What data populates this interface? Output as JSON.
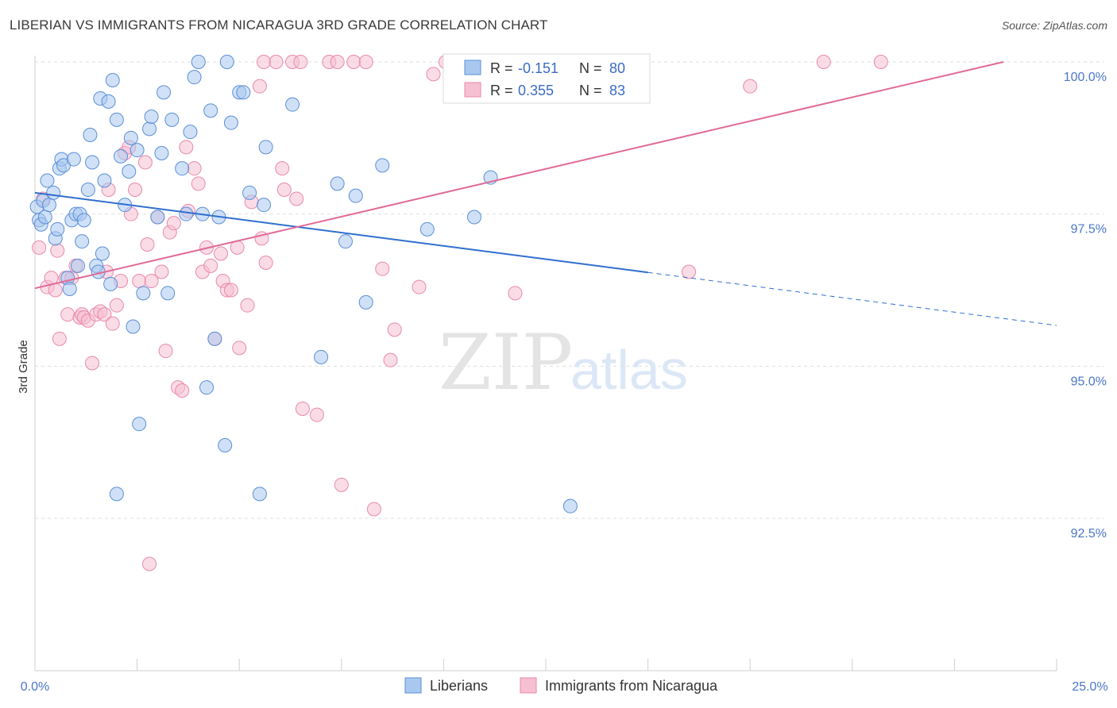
{
  "title": "LIBERIAN VS IMMIGRANTS FROM NICARAGUA 3RD GRADE CORRELATION CHART",
  "source": "Source: ZipAtlas.com",
  "watermark": {
    "zip": "ZIP",
    "atlas": "atlas"
  },
  "colors": {
    "liberians_fill": "#a9c8f0",
    "liberians_stroke": "#5b8fd6",
    "liberians_line": "#2f6fce",
    "nicaragua_fill": "#f6bfd2",
    "nicaragua_stroke": "#e88aab",
    "nicaragua_line": "#e06a97",
    "grid": "#dedede",
    "tick_text": "#4a77c8"
  },
  "legend": {
    "r_label": "R =",
    "n_label": "N =",
    "series1_r": "-0.151",
    "series1_n": "80",
    "series2_r": "0.355",
    "series2_n": "83"
  },
  "chart_data": {
    "type": "scatter",
    "title": "LIBERIAN VS IMMIGRANTS FROM NICARAGUA 3RD GRADE CORRELATION CHART",
    "xlabel": "",
    "ylabel": "3rd Grade",
    "xlim": [
      0,
      25
    ],
    "ylim": [
      90.0,
      100.4
    ],
    "x_tick_labels": [
      "0.0%",
      "25.0%"
    ],
    "y_ticks": [
      92.5,
      95.0,
      97.5,
      100.0
    ],
    "y_tick_labels": [
      "92.5%",
      "95.0%",
      "97.5%",
      "100.0%"
    ],
    "grid": true,
    "legend_position": "top-center",
    "series": [
      {
        "name": "Liberians",
        "color": "#a9c8f0",
        "r": -0.151,
        "n": 80,
        "trend": {
          "x0": 0,
          "y0": 97.85,
          "x1": 15.0,
          "y1": 96.54,
          "dashed_to_x": 25,
          "dashed_to_y": 95.67
        },
        "points": [
          [
            0.05,
            97.62
          ],
          [
            0.1,
            97.4
          ],
          [
            0.15,
            97.33
          ],
          [
            0.2,
            97.72
          ],
          [
            0.25,
            97.45
          ],
          [
            0.3,
            98.05
          ],
          [
            0.35,
            97.65
          ],
          [
            0.45,
            97.85
          ],
          [
            0.5,
            97.1
          ],
          [
            0.55,
            97.25
          ],
          [
            0.6,
            98.25
          ],
          [
            0.65,
            98.4
          ],
          [
            0.7,
            98.3
          ],
          [
            0.8,
            96.45
          ],
          [
            0.85,
            96.27
          ],
          [
            0.9,
            97.4
          ],
          [
            0.95,
            98.4
          ],
          [
            1.0,
            97.5
          ],
          [
            1.05,
            96.65
          ],
          [
            1.1,
            97.5
          ],
          [
            1.15,
            97.05
          ],
          [
            1.2,
            97.4
          ],
          [
            1.3,
            97.9
          ],
          [
            1.35,
            98.8
          ],
          [
            1.4,
            98.35
          ],
          [
            1.5,
            96.65
          ],
          [
            1.55,
            96.55
          ],
          [
            1.6,
            99.4
          ],
          [
            1.65,
            96.85
          ],
          [
            1.7,
            98.05
          ],
          [
            1.8,
            99.35
          ],
          [
            1.85,
            96.35
          ],
          [
            1.9,
            99.7
          ],
          [
            2.0,
            99.05
          ],
          [
            2.1,
            98.45
          ],
          [
            2.2,
            97.65
          ],
          [
            2.3,
            98.2
          ],
          [
            2.35,
            98.75
          ],
          [
            2.4,
            95.65
          ],
          [
            2.5,
            98.55
          ],
          [
            2.55,
            94.05
          ],
          [
            2.65,
            96.2
          ],
          [
            2.8,
            98.9
          ],
          [
            2.85,
            99.1
          ],
          [
            3.0,
            97.45
          ],
          [
            3.1,
            98.5
          ],
          [
            3.15,
            99.5
          ],
          [
            3.25,
            96.2
          ],
          [
            3.35,
            99.05
          ],
          [
            3.6,
            98.25
          ],
          [
            3.7,
            97.5
          ],
          [
            3.8,
            98.85
          ],
          [
            3.9,
            99.75
          ],
          [
            4.0,
            100.0
          ],
          [
            4.1,
            97.5
          ],
          [
            4.2,
            94.65
          ],
          [
            4.3,
            99.2
          ],
          [
            4.4,
            95.45
          ],
          [
            4.5,
            97.45
          ],
          [
            4.65,
            93.7
          ],
          [
            4.7,
            100.0
          ],
          [
            4.8,
            99.0
          ],
          [
            5.0,
            99.5
          ],
          [
            5.1,
            99.5
          ],
          [
            5.25,
            97.85
          ],
          [
            5.5,
            92.9
          ],
          [
            5.6,
            97.65
          ],
          [
            5.65,
            98.6
          ],
          [
            6.3,
            99.3
          ],
          [
            7.0,
            95.15
          ],
          [
            7.4,
            98.0
          ],
          [
            7.6,
            97.05
          ],
          [
            7.85,
            97.8
          ],
          [
            8.1,
            96.05
          ],
          [
            8.5,
            98.3
          ],
          [
            9.6,
            97.25
          ],
          [
            10.75,
            97.45
          ],
          [
            11.15,
            98.1
          ],
          [
            13.1,
            92.7
          ],
          [
            2.0,
            92.9
          ]
        ]
      },
      {
        "name": "Immigrants from Nicaragua",
        "color": "#f6bfd2",
        "r": 0.355,
        "n": 83,
        "trend": {
          "x0": 0,
          "y0": 96.28,
          "x1": 23.7,
          "y1": 100.0
        },
        "points": [
          [
            0.1,
            96.95
          ],
          [
            0.2,
            97.75
          ],
          [
            0.3,
            96.3
          ],
          [
            0.4,
            96.45
          ],
          [
            0.5,
            96.25
          ],
          [
            0.55,
            96.9
          ],
          [
            0.6,
            95.45
          ],
          [
            0.75,
            96.45
          ],
          [
            0.8,
            95.85
          ],
          [
            0.9,
            96.45
          ],
          [
            1.0,
            96.65
          ],
          [
            1.1,
            95.8
          ],
          [
            1.15,
            95.85
          ],
          [
            1.2,
            95.8
          ],
          [
            1.3,
            95.75
          ],
          [
            1.4,
            95.05
          ],
          [
            1.5,
            95.85
          ],
          [
            1.6,
            95.9
          ],
          [
            1.7,
            95.85
          ],
          [
            1.75,
            96.55
          ],
          [
            1.8,
            97.9
          ],
          [
            1.9,
            95.7
          ],
          [
            2.0,
            96.0
          ],
          [
            2.1,
            96.4
          ],
          [
            2.2,
            98.5
          ],
          [
            2.3,
            98.6
          ],
          [
            2.35,
            97.5
          ],
          [
            2.45,
            97.9
          ],
          [
            2.55,
            96.4
          ],
          [
            2.7,
            98.35
          ],
          [
            2.75,
            97.0
          ],
          [
            2.85,
            96.4
          ],
          [
            3.0,
            97.45
          ],
          [
            3.1,
            96.55
          ],
          [
            3.2,
            95.25
          ],
          [
            3.3,
            97.2
          ],
          [
            3.4,
            97.35
          ],
          [
            3.5,
            94.65
          ],
          [
            3.6,
            94.6
          ],
          [
            3.7,
            98.6
          ],
          [
            3.75,
            97.55
          ],
          [
            3.9,
            98.25
          ],
          [
            4.0,
            98.0
          ],
          [
            4.1,
            96.55
          ],
          [
            4.2,
            96.95
          ],
          [
            4.3,
            96.65
          ],
          [
            4.4,
            95.45
          ],
          [
            4.55,
            96.85
          ],
          [
            4.6,
            96.4
          ],
          [
            4.7,
            96.25
          ],
          [
            4.8,
            96.25
          ],
          [
            4.95,
            96.95
          ],
          [
            5.0,
            95.3
          ],
          [
            5.2,
            96.0
          ],
          [
            5.3,
            97.7
          ],
          [
            5.5,
            99.6
          ],
          [
            5.55,
            97.1
          ],
          [
            5.6,
            100.0
          ],
          [
            5.65,
            96.7
          ],
          [
            5.9,
            100.0
          ],
          [
            6.05,
            98.25
          ],
          [
            6.1,
            97.9
          ],
          [
            6.3,
            100.0
          ],
          [
            6.4,
            97.75
          ],
          [
            6.5,
            100.0
          ],
          [
            6.55,
            94.3
          ],
          [
            6.9,
            94.2
          ],
          [
            7.2,
            100.0
          ],
          [
            7.4,
            100.0
          ],
          [
            7.5,
            93.05
          ],
          [
            7.8,
            100.0
          ],
          [
            8.1,
            100.0
          ],
          [
            8.3,
            92.65
          ],
          [
            8.5,
            96.6
          ],
          [
            8.7,
            95.1
          ],
          [
            8.8,
            95.6
          ],
          [
            9.4,
            96.3
          ],
          [
            9.75,
            99.8
          ],
          [
            10.05,
            100.0
          ],
          [
            11.75,
            96.2
          ],
          [
            16.0,
            96.55
          ],
          [
            17.5,
            99.6
          ],
          [
            19.3,
            100.0
          ],
          [
            20.7,
            100.0
          ],
          [
            2.8,
            91.75
          ]
        ]
      }
    ]
  },
  "bottom_legend": [
    {
      "label": "Liberians"
    },
    {
      "label": "Immigrants from Nicaragua"
    }
  ]
}
